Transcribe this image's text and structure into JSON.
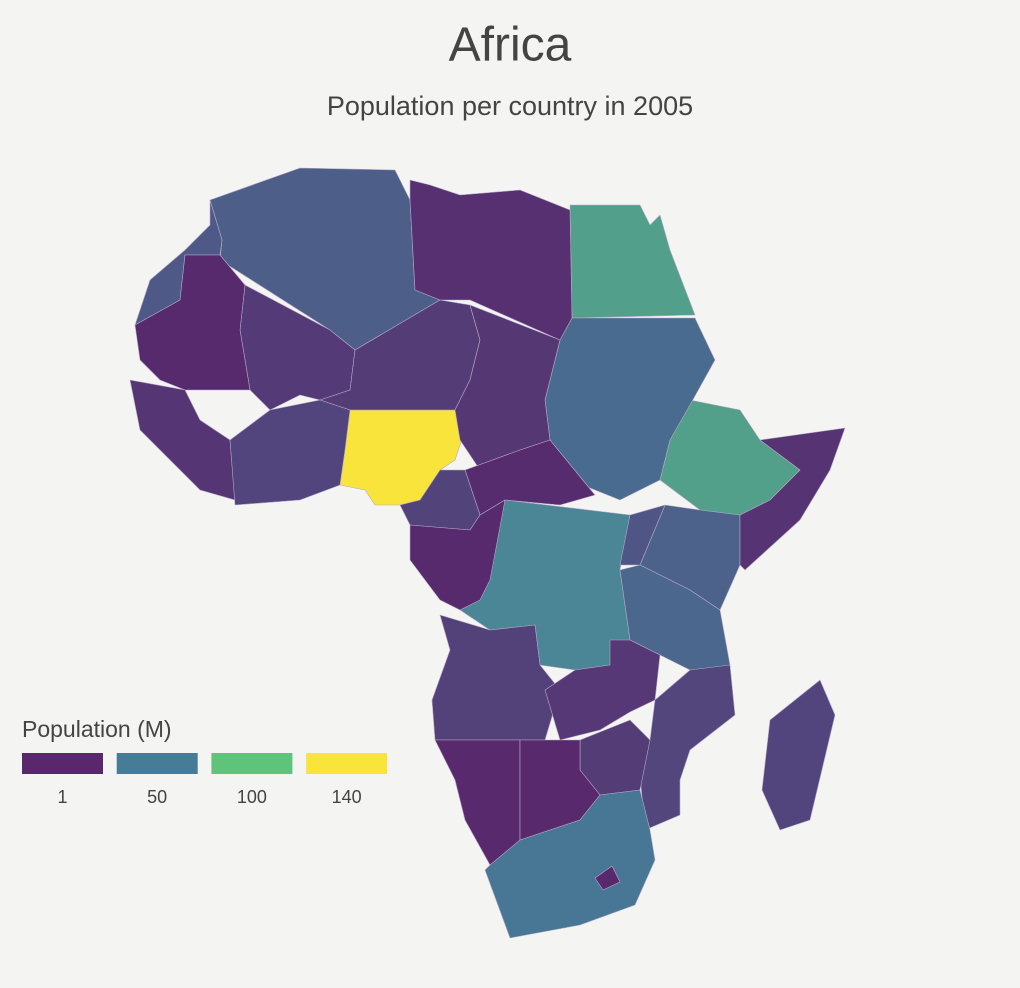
{
  "title": "Africa",
  "subtitle": "Population per country in 2005",
  "legend": {
    "title": "Population (M)",
    "stops": [
      {
        "value": 1,
        "color": "#58276c"
      },
      {
        "value": 50,
        "color": "#477c99"
      },
      {
        "value": 100,
        "color": "#5ec47b"
      },
      {
        "value": 140,
        "color": "#f9e43c"
      }
    ]
  },
  "regions": {
    "values": [
      140,
      75,
      74,
      57,
      40,
      33,
      30,
      6,
      12,
      3,
      13,
      10,
      9,
      18,
      4,
      17,
      3,
      35,
      28,
      8,
      38,
      16,
      11,
      19,
      13,
      2,
      2,
      47,
      18,
      2
    ]
  }
}
